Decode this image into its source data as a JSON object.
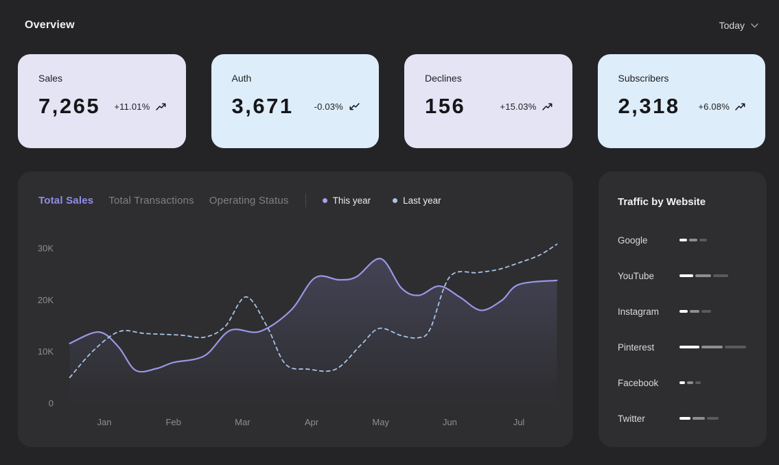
{
  "header": {
    "title": "Overview",
    "range_label": "Today"
  },
  "colors": {
    "page_bg": "#242427",
    "panel_bg": "#2e2e31",
    "accent_purple": "#908de9",
    "card_lavender": "#e4e4f4",
    "card_blue": "#ddedf9",
    "this_year_line": "#9b97e6",
    "last_year_line": "#a9c5e8",
    "axis_label": "#8f8f92"
  },
  "stat_cards": [
    {
      "label": "Sales",
      "value": "7,265",
      "delta": "+11.01%",
      "trend": "up",
      "bg": "#e4e4f4"
    },
    {
      "label": "Auth",
      "value": "3,671",
      "delta": "-0.03%",
      "trend": "down",
      "bg": "#ddedf9"
    },
    {
      "label": "Declines",
      "value": "156",
      "delta": "+15.03%",
      "trend": "up",
      "bg": "#e4e4f4"
    },
    {
      "label": "Subscribers",
      "value": "2,318",
      "delta": "+6.08%",
      "trend": "up",
      "bg": "#ddedf9"
    }
  ],
  "chart_panel": {
    "tabs": [
      {
        "label": "Total Sales",
        "active": true
      },
      {
        "label": "Total Transactions",
        "active": false
      },
      {
        "label": "Operating Status",
        "active": false
      }
    ],
    "legend": [
      {
        "label": "This year",
        "color": "#a5a1ea"
      },
      {
        "label": "Last year",
        "color": "#a9c5e8"
      }
    ]
  },
  "chart_data": {
    "type": "line",
    "title": "Total Sales",
    "x_axis": {
      "labels": [
        "Jan",
        "Feb",
        "Mar",
        "Apr",
        "May",
        "Jun",
        "Jul"
      ]
    },
    "y_axis": {
      "ticks": [
        "0",
        "10K",
        "20K",
        "30K"
      ],
      "tick_values": [
        0,
        10,
        20,
        30
      ],
      "unit": "K"
    },
    "grid": false,
    "legend_position": "top",
    "x_domain_months": [
      0.5,
      7.55
    ],
    "y_range_k": [
      0,
      31.5
    ],
    "series": [
      {
        "name": "This year",
        "style": "solid",
        "color": "#9b97e6",
        "fill": true,
        "points_month_valueK": [
          [
            0.5,
            11.6
          ],
          [
            0.92,
            13.8
          ],
          [
            1.2,
            11.0
          ],
          [
            1.45,
            6.4
          ],
          [
            1.75,
            6.7
          ],
          [
            2.0,
            7.9
          ],
          [
            2.45,
            9.2
          ],
          [
            2.82,
            14.1
          ],
          [
            3.25,
            13.9
          ],
          [
            3.7,
            18.0
          ],
          [
            4.05,
            24.3
          ],
          [
            4.4,
            23.9
          ],
          [
            4.65,
            24.5
          ],
          [
            5.0,
            28.0
          ],
          [
            5.3,
            22.3
          ],
          [
            5.55,
            20.9
          ],
          [
            5.85,
            22.7
          ],
          [
            6.15,
            20.5
          ],
          [
            6.45,
            18.0
          ],
          [
            6.75,
            19.9
          ],
          [
            7.0,
            23.0
          ],
          [
            7.55,
            23.8
          ]
        ]
      },
      {
        "name": "Last year",
        "style": "dashed",
        "color": "#a9c5e8",
        "fill": false,
        "points_month_valueK": [
          [
            0.5,
            5.0
          ],
          [
            0.85,
            10.3
          ],
          [
            1.22,
            13.9
          ],
          [
            1.6,
            13.5
          ],
          [
            2.1,
            13.2
          ],
          [
            2.45,
            12.8
          ],
          [
            2.75,
            14.9
          ],
          [
            3.05,
            20.6
          ],
          [
            3.35,
            15.0
          ],
          [
            3.62,
            7.6
          ],
          [
            3.95,
            6.6
          ],
          [
            4.35,
            6.6
          ],
          [
            4.72,
            11.4
          ],
          [
            4.98,
            14.5
          ],
          [
            5.3,
            13.1
          ],
          [
            5.55,
            12.7
          ],
          [
            5.72,
            14.5
          ],
          [
            6.0,
            24.5
          ],
          [
            6.4,
            25.3
          ],
          [
            6.7,
            25.9
          ],
          [
            7.0,
            27.2
          ],
          [
            7.3,
            28.7
          ],
          [
            7.55,
            30.8
          ]
        ]
      }
    ]
  },
  "traffic_panel": {
    "title": "Traffic by Website",
    "bar_colors": [
      "#ffffff",
      "#8e8e91",
      "#5a5a5e"
    ],
    "rows": [
      {
        "label": "Google",
        "segments": [
          11,
          12,
          11
        ]
      },
      {
        "label": "YouTube",
        "segments": [
          20,
          23,
          22
        ]
      },
      {
        "label": "Instagram",
        "segments": [
          12,
          14,
          14
        ]
      },
      {
        "label": "Pinterest",
        "segments": [
          29,
          31,
          31
        ]
      },
      {
        "label": "Facebook",
        "segments": [
          8,
          9,
          8
        ]
      },
      {
        "label": "Twitter",
        "segments": [
          16,
          18,
          17
        ]
      }
    ]
  }
}
